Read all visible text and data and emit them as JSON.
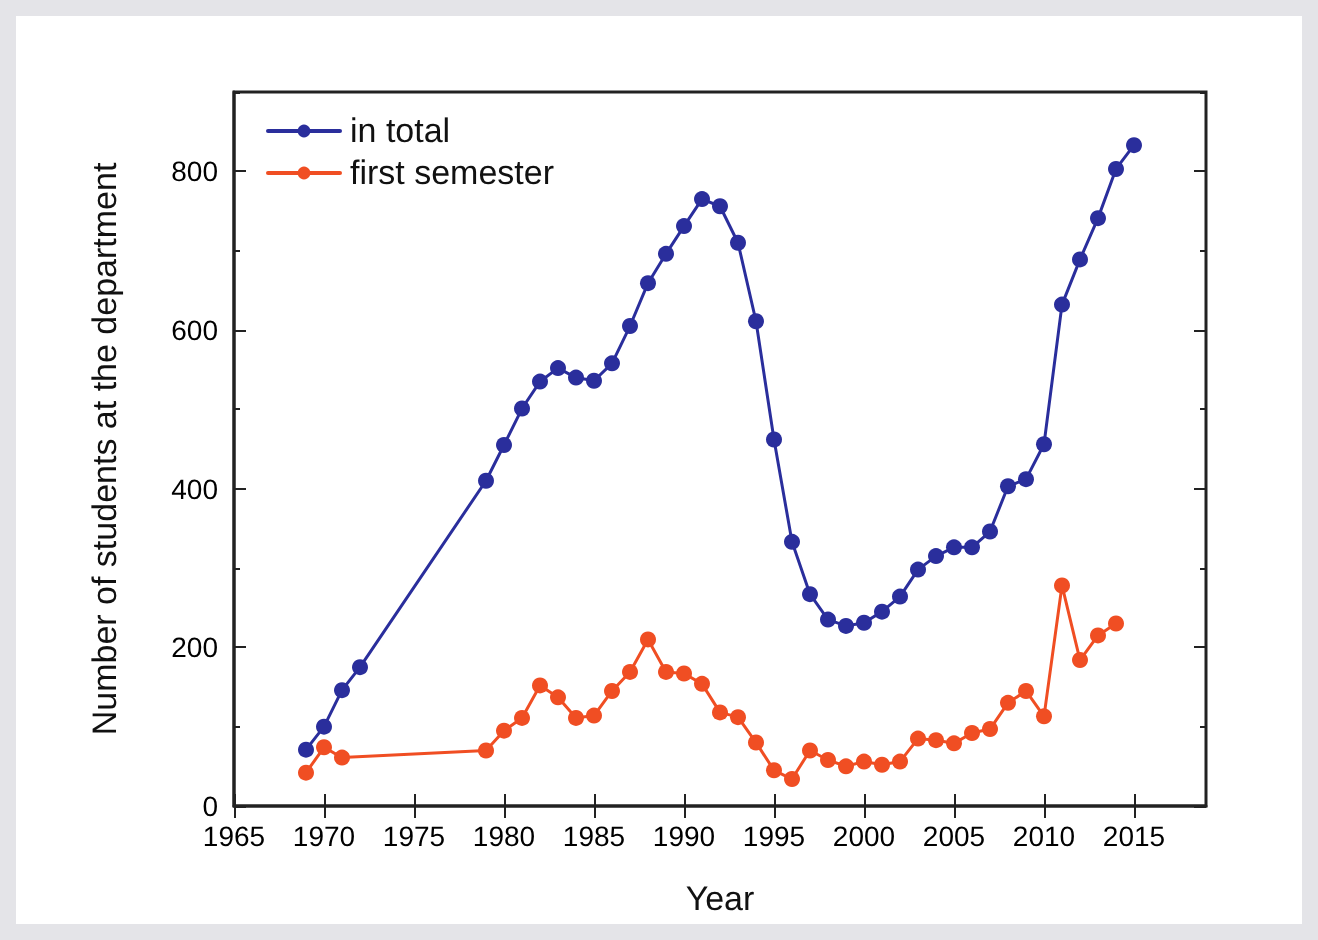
{
  "chart_data": {
    "type": "line",
    "xlabel": "Year",
    "ylabel": "Number of students at the department",
    "xlim": [
      1965,
      2019
    ],
    "xticks": [
      1965,
      1970,
      1975,
      1980,
      1985,
      1990,
      1995,
      2000,
      2005,
      2010,
      2015
    ],
    "ylim": [
      0,
      900
    ],
    "yticks": [
      0,
      200,
      400,
      600,
      800
    ],
    "marker": "circle",
    "line_style": "solid",
    "legend": "top left",
    "grid": false,
    "series": [
      {
        "name": "in total",
        "color": "#2a2e9c",
        "x": [
          1969,
          1970,
          1971,
          1972,
          1979,
          1980,
          1981,
          1982,
          1983,
          1984,
          1985,
          1986,
          1987,
          1988,
          1989,
          1990,
          1991,
          1992,
          1993,
          1994,
          1995,
          1996,
          1997,
          1998,
          1999,
          2000,
          2001,
          2002,
          2003,
          2004,
          2005,
          2006,
          2007,
          2008,
          2009,
          2010,
          2011,
          2012,
          2013,
          2014,
          2015
        ],
        "values": [
          71,
          100,
          146,
          175,
          410,
          455,
          501,
          535,
          552,
          540,
          536,
          558,
          605,
          659,
          696,
          731,
          765,
          756,
          710,
          611,
          462,
          333,
          267,
          235,
          227,
          231,
          245,
          264,
          298,
          315,
          326,
          326,
          346,
          403,
          412,
          456,
          632,
          689,
          741,
          803,
          833
        ]
      },
      {
        "name": "first semester",
        "color": "#f04e23",
        "x": [
          1969,
          1970,
          1971,
          1979,
          1980,
          1981,
          1982,
          1983,
          1984,
          1985,
          1986,
          1987,
          1988,
          1989,
          1990,
          1991,
          1992,
          1993,
          1994,
          1995,
          1996,
          1997,
          1998,
          1999,
          2000,
          2001,
          2002,
          2003,
          2004,
          2005,
          2006,
          2007,
          2008,
          2009,
          2010,
          2011,
          2012,
          2013,
          2014
        ],
        "values": [
          42,
          74,
          61,
          70,
          95,
          111,
          152,
          137,
          111,
          114,
          145,
          169,
          210,
          169,
          167,
          154,
          118,
          112,
          80,
          45,
          34,
          70,
          58,
          50,
          56,
          52,
          56,
          85,
          83,
          79,
          92,
          97,
          130,
          145,
          113,
          278,
          184,
          215,
          230
        ]
      }
    ]
  }
}
